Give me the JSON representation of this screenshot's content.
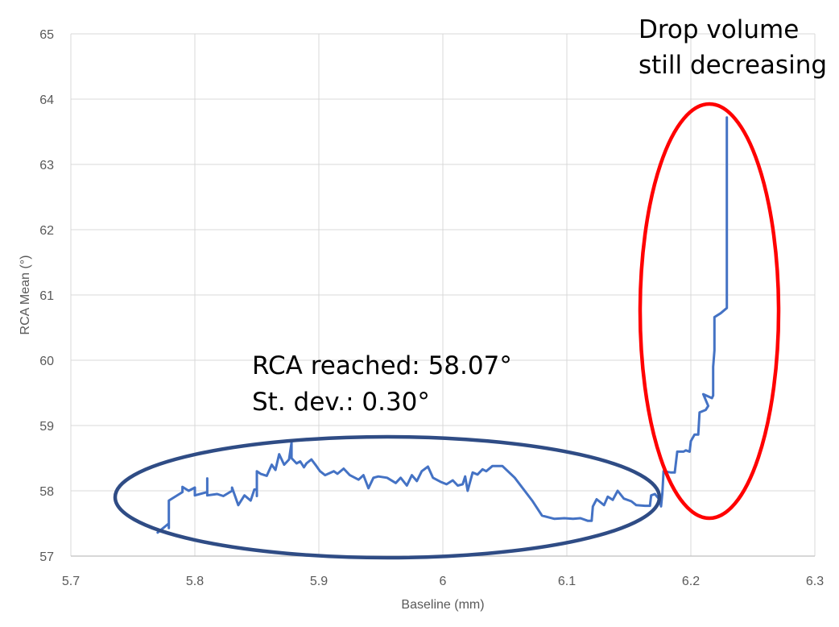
{
  "chart_data": {
    "type": "line",
    "title": "",
    "xlabel": "Baseline (mm)",
    "ylabel": "RCA Mean (°)",
    "xlim": [
      5.7,
      6.3
    ],
    "ylim": [
      57,
      65
    ],
    "x_ticks": [
      "5.7",
      "5.8",
      "5.9",
      "6",
      "6.1",
      "6.2",
      "6.3"
    ],
    "y_ticks": [
      "57",
      "58",
      "59",
      "60",
      "61",
      "62",
      "63",
      "64",
      "65"
    ],
    "grid": true,
    "line_color": "#4472C4",
    "series": [
      {
        "points": [
          [
            5.77,
            57.36
          ],
          [
            5.779,
            57.5
          ],
          [
            5.779,
            57.43
          ],
          [
            5.779,
            57.85
          ],
          [
            5.79,
            57.98
          ],
          [
            5.79,
            58.06
          ],
          [
            5.795,
            58.0
          ],
          [
            5.8,
            58.05
          ],
          [
            5.8,
            57.93
          ],
          [
            5.81,
            57.98
          ],
          [
            5.81,
            58.19
          ],
          [
            5.81,
            57.93
          ],
          [
            5.818,
            57.95
          ],
          [
            5.823,
            57.92
          ],
          [
            5.83,
            58.0
          ],
          [
            5.83,
            58.05
          ],
          [
            5.835,
            57.78
          ],
          [
            5.84,
            57.93
          ],
          [
            5.845,
            57.85
          ],
          [
            5.848,
            58.02
          ],
          [
            5.85,
            58.02
          ],
          [
            5.85,
            57.92
          ],
          [
            5.85,
            58.3
          ],
          [
            5.853,
            58.26
          ],
          [
            5.858,
            58.23
          ],
          [
            5.862,
            58.4
          ],
          [
            5.865,
            58.32
          ],
          [
            5.868,
            58.56
          ],
          [
            5.872,
            58.4
          ],
          [
            5.876,
            58.48
          ],
          [
            5.878,
            58.74
          ],
          [
            5.878,
            58.5
          ],
          [
            5.882,
            58.42
          ],
          [
            5.885,
            58.45
          ],
          [
            5.888,
            58.36
          ],
          [
            5.89,
            58.42
          ],
          [
            5.894,
            58.48
          ],
          [
            5.898,
            58.38
          ],
          [
            5.901,
            58.3
          ],
          [
            5.905,
            58.24
          ],
          [
            5.912,
            58.3
          ],
          [
            5.915,
            58.26
          ],
          [
            5.92,
            58.34
          ],
          [
            5.925,
            58.24
          ],
          [
            5.932,
            58.17
          ],
          [
            5.936,
            58.24
          ],
          [
            5.94,
            58.04
          ],
          [
            5.944,
            58.2
          ],
          [
            5.948,
            58.22
          ],
          [
            5.955,
            58.2
          ],
          [
            5.962,
            58.12
          ],
          [
            5.966,
            58.2
          ],
          [
            5.971,
            58.08
          ],
          [
            5.975,
            58.24
          ],
          [
            5.979,
            58.15
          ],
          [
            5.983,
            58.3
          ],
          [
            5.988,
            58.37
          ],
          [
            5.992,
            58.2
          ],
          [
            5.998,
            58.14
          ],
          [
            6.003,
            58.1
          ],
          [
            6.008,
            58.16
          ],
          [
            6.012,
            58.08
          ],
          [
            6.016,
            58.1
          ],
          [
            6.018,
            58.22
          ],
          [
            6.02,
            58.0
          ],
          [
            6.024,
            58.28
          ],
          [
            6.028,
            58.25
          ],
          [
            6.032,
            58.33
          ],
          [
            6.035,
            58.3
          ],
          [
            6.04,
            58.38
          ],
          [
            6.048,
            58.38
          ],
          [
            6.058,
            58.2
          ],
          [
            6.072,
            57.85
          ],
          [
            6.08,
            57.62
          ],
          [
            6.09,
            57.57
          ],
          [
            6.098,
            57.58
          ],
          [
            6.105,
            57.57
          ],
          [
            6.111,
            57.58
          ],
          [
            6.117,
            57.54
          ],
          [
            6.12,
            57.54
          ],
          [
            6.121,
            57.76
          ],
          [
            6.124,
            57.87
          ],
          [
            6.13,
            57.78
          ],
          [
            6.133,
            57.91
          ],
          [
            6.137,
            57.86
          ],
          [
            6.141,
            58.0
          ],
          [
            6.146,
            57.88
          ],
          [
            6.152,
            57.84
          ],
          [
            6.156,
            57.78
          ],
          [
            6.163,
            57.77
          ],
          [
            6.167,
            57.77
          ],
          [
            6.168,
            57.93
          ],
          [
            6.171,
            57.95
          ],
          [
            6.175,
            57.86
          ],
          [
            6.176,
            57.76
          ],
          [
            6.177,
            57.96
          ],
          [
            6.178,
            58.3
          ],
          [
            6.184,
            58.28
          ],
          [
            6.187,
            58.28
          ],
          [
            6.189,
            58.6
          ],
          [
            6.194,
            58.6
          ],
          [
            6.196,
            58.62
          ],
          [
            6.199,
            58.6
          ],
          [
            6.2,
            58.76
          ],
          [
            6.203,
            58.86
          ],
          [
            6.206,
            58.86
          ],
          [
            6.207,
            59.2
          ],
          [
            6.212,
            59.24
          ],
          [
            6.214,
            59.3
          ],
          [
            6.21,
            59.48
          ],
          [
            6.217,
            59.42
          ],
          [
            6.218,
            59.46
          ],
          [
            6.218,
            59.9
          ],
          [
            6.219,
            60.15
          ],
          [
            6.219,
            60.66
          ],
          [
            6.224,
            60.72
          ],
          [
            6.229,
            60.8
          ],
          [
            6.229,
            61.0
          ],
          [
            6.229,
            62.8
          ],
          [
            6.229,
            63.72
          ]
        ]
      }
    ],
    "annotations": [
      {
        "text_lines": [
          "RCA reached: 58.07°",
          "St. dev.: 0.30°"
        ],
        "ellipse_color": "#2F4C85"
      },
      {
        "text_lines": [
          "Drop volume",
          "still decreasing"
        ],
        "ellipse_color": "#FF0000"
      }
    ]
  }
}
